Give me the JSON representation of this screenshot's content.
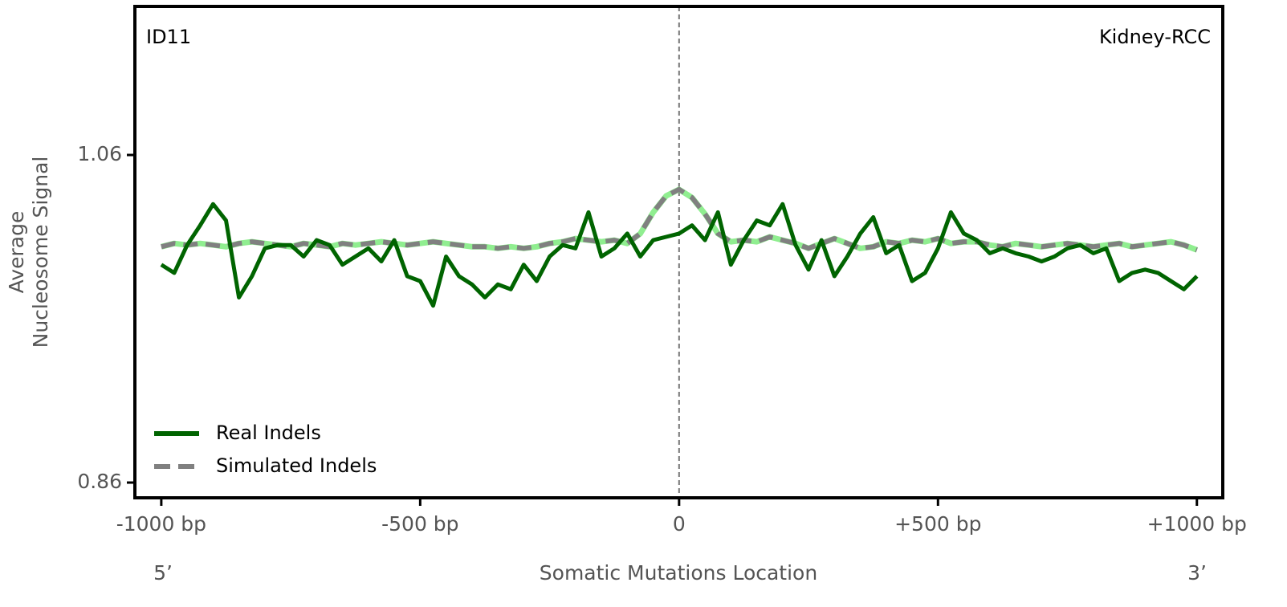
{
  "chart_data": {
    "type": "line",
    "annotation_left": "ID11",
    "annotation_right": "Kidney-RCC",
    "ylabel": [
      "Average",
      "Nucleosome Signal"
    ],
    "xlabel": "Somatic Mutations Location",
    "x_left_end": "5’",
    "x_right_end": "3’",
    "xlim": [
      -1051,
      1050
    ],
    "ylim": [
      0.8507,
      1.1507
    ],
    "xticks": [
      {
        "value": -1000,
        "label": "-1000 bp"
      },
      {
        "value": -500,
        "label": "-500 bp"
      },
      0,
      {
        "value": 500,
        "label": "+500 bp"
      },
      {
        "value": 1000,
        "label": "+1000 bp"
      }
    ],
    "yticks": [
      0.86,
      1.06
    ],
    "vline": 0,
    "legend": "lower left",
    "x": [
      -1000,
      -975,
      -950,
      -925,
      -900,
      -875,
      -850,
      -825,
      -800,
      -775,
      -750,
      -725,
      -700,
      -675,
      -650,
      -625,
      -600,
      -575,
      -550,
      -525,
      -500,
      -475,
      -450,
      -425,
      -400,
      -375,
      -350,
      -325,
      -300,
      -275,
      -250,
      -225,
      -200,
      -175,
      -150,
      -125,
      -100,
      -75,
      -50,
      -25,
      0,
      25,
      50,
      75,
      100,
      125,
      150,
      175,
      200,
      225,
      250,
      275,
      300,
      325,
      350,
      375,
      400,
      425,
      450,
      475,
      500,
      525,
      550,
      575,
      600,
      625,
      650,
      675,
      700,
      725,
      750,
      775,
      800,
      825,
      850,
      875,
      900,
      925,
      950,
      975,
      1000
    ],
    "series": [
      {
        "name": "Real Indels",
        "color": "#006400",
        "dashed": false,
        "values": [
          0.993,
          0.988,
          1.005,
          1.017,
          1.03,
          1.02,
          0.973,
          0.986,
          1.003,
          1.005,
          1.005,
          0.998,
          1.008,
          1.005,
          0.993,
          0.998,
          1.003,
          0.995,
          1.008,
          0.986,
          0.983,
          0.968,
          0.998,
          0.986,
          0.981,
          0.973,
          0.981,
          0.978,
          0.993,
          0.983,
          0.998,
          1.005,
          1.003,
          1.025,
          0.998,
          1.003,
          1.012,
          0.998,
          1.008,
          1.01,
          1.012,
          1.017,
          1.008,
          1.025,
          0.993,
          1.008,
          1.02,
          1.017,
          1.03,
          1.005,
          0.99,
          1.008,
          0.986,
          0.998,
          1.012,
          1.022,
          1.0,
          1.005,
          0.983,
          0.988,
          1.003,
          1.025,
          1.012,
          1.008,
          1.0,
          1.003,
          1.0,
          0.998,
          0.995,
          0.998,
          1.003,
          1.005,
          1.0,
          1.003,
          0.983,
          0.988,
          0.99,
          0.988,
          0.983,
          0.978,
          0.986
        ]
      },
      {
        "name": "Simulated Indels",
        "color": "#808080",
        "dashed": true,
        "underlay_color": "#90ee90",
        "values": [
          1.004,
          1.006,
          1.005,
          1.006,
          1.005,
          1.004,
          1.006,
          1.007,
          1.006,
          1.005,
          1.004,
          1.006,
          1.005,
          1.004,
          1.006,
          1.005,
          1.006,
          1.007,
          1.006,
          1.005,
          1.006,
          1.007,
          1.006,
          1.005,
          1.004,
          1.004,
          1.003,
          1.004,
          1.003,
          1.004,
          1.006,
          1.007,
          1.009,
          1.008,
          1.007,
          1.008,
          1.006,
          1.012,
          1.025,
          1.035,
          1.039,
          1.034,
          1.024,
          1.012,
          1.007,
          1.008,
          1.007,
          1.01,
          1.008,
          1.006,
          1.003,
          1.006,
          1.009,
          1.006,
          1.003,
          1.004,
          1.007,
          1.006,
          1.008,
          1.007,
          1.009,
          1.006,
          1.007,
          1.007,
          1.005,
          1.004,
          1.006,
          1.005,
          1.004,
          1.005,
          1.006,
          1.005,
          1.004,
          1.005,
          1.006,
          1.004,
          1.005,
          1.006,
          1.007,
          1.005,
          1.002
        ]
      }
    ]
  }
}
